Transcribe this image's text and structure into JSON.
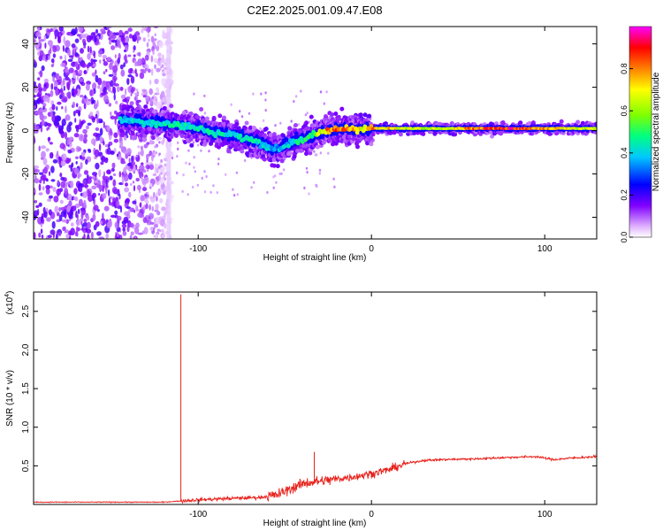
{
  "figure": {
    "title": "C2E2.2025.001.09.47.E08"
  },
  "chart_data": [
    {
      "type": "heatmap",
      "xlabel": "Height of straight line (km)",
      "ylabel": "Frequency (Hz)",
      "xlim": [
        -195,
        130
      ],
      "ylim": [
        -50,
        48
      ],
      "x_ticks": [
        -100,
        0,
        100
      ],
      "y_ticks": [
        -40,
        -20,
        0,
        20,
        40
      ],
      "colorbar": {
        "label": "Normalized spectral amplitude",
        "range": [
          0,
          1
        ],
        "ticks": [
          0.0,
          0.2,
          0.4,
          0.6,
          0.8
        ],
        "tick_labels": [
          "0.0",
          "0.2",
          "0.4",
          "0.6",
          "0.8"
        ],
        "colormap": [
          "#ffffff",
          "#e0b3ff",
          "#8000ff",
          "#0000ff",
          "#00c8ff",
          "#00ff80",
          "#80ff00",
          "#ffff00",
          "#ff8000",
          "#ff0000",
          "#ff00ff"
        ]
      },
      "vertical_band": {
        "x": -117,
        "description_color": "#e6c8ff"
      },
      "ridge": {
        "x": [
          -145,
          -130,
          -115,
          -100,
          -90,
          -80,
          -70,
          -60,
          -55,
          -45,
          -35,
          -25,
          -15,
          -5,
          0,
          10,
          20,
          40,
          60,
          80,
          100,
          115,
          130
        ],
        "freq": [
          5,
          4,
          3,
          1,
          -1,
          -2,
          -4,
          -7,
          -9,
          -5,
          -3,
          0,
          1,
          1,
          1,
          1,
          1,
          1,
          1,
          1,
          1,
          1,
          1
        ],
        "amplitude": [
          0.4,
          0.42,
          0.45,
          0.45,
          0.45,
          0.42,
          0.45,
          0.4,
          0.35,
          0.45,
          0.5,
          0.8,
          0.85,
          0.7,
          0.8,
          0.75,
          0.65,
          0.65,
          0.85,
          0.9,
          0.8,
          0.7,
          0.65
        ]
      },
      "noise_region": {
        "x_range": [
          -195,
          -140
        ],
        "freq_range": [
          -50,
          48
        ]
      }
    },
    {
      "type": "line",
      "xlabel": "Height of straight line (km)",
      "ylabel": "SNR (10 * v/v)",
      "y_multiplier_label": "(x10",
      "y_multiplier_exponent": "4",
      "xlim": [
        -195,
        130
      ],
      "ylim": [
        0,
        2.75
      ],
      "x_ticks": [
        -100,
        0,
        100
      ],
      "y_ticks": [
        0.5,
        1.0,
        1.5,
        2.0,
        2.5
      ],
      "y_tick_labels": [
        "0.5",
        "1.0",
        "1.5",
        "2.0",
        "2.5"
      ],
      "color": "#e8201a",
      "spikes": [
        {
          "x": -110,
          "value": 2.72
        },
        {
          "x": -33,
          "value": 0.68
        }
      ],
      "envelope": {
        "x": [
          -195,
          -150,
          -120,
          -100,
          -80,
          -65,
          -55,
          -45,
          -38,
          -30,
          -20,
          -10,
          0,
          10,
          20,
          30,
          40,
          60,
          80,
          95,
          105,
          115,
          130
        ],
        "values": [
          0.03,
          0.03,
          0.03,
          0.06,
          0.08,
          0.09,
          0.12,
          0.22,
          0.28,
          0.3,
          0.33,
          0.36,
          0.4,
          0.45,
          0.53,
          0.57,
          0.58,
          0.59,
          0.61,
          0.62,
          0.58,
          0.6,
          0.62
        ]
      }
    }
  ]
}
